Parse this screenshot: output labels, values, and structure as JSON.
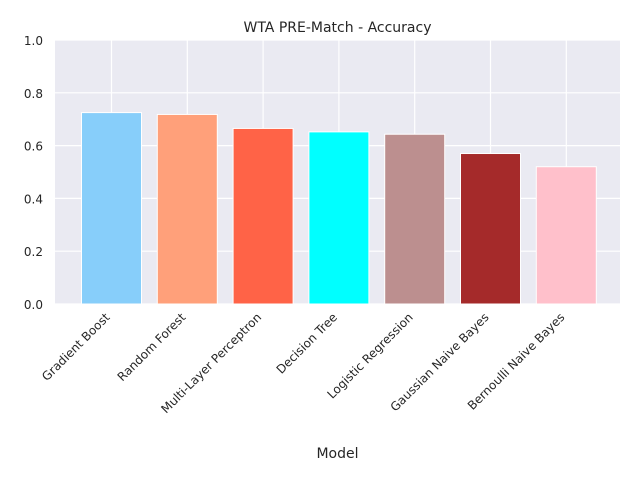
{
  "chart_data": {
    "type": "bar",
    "title": "WTA PRE-Match - Accuracy",
    "xlabel": "Model",
    "ylabel": "",
    "ylim": [
      0,
      1.0
    ],
    "yticks": [
      "0.0",
      "0.2",
      "0.4",
      "0.6",
      "0.8",
      "1.0"
    ],
    "categories": [
      "Gradient Boost",
      "Random Forest",
      "Multi-Layer Perceptron",
      "Decision Tree",
      "Logistic Regression",
      "Gaussian Naive Bayes",
      "Bernoulli Naive Bayes"
    ],
    "values": [
      0.725,
      0.718,
      0.665,
      0.652,
      0.643,
      0.57,
      0.52
    ],
    "colors": [
      "#87CEFA",
      "#FFA07A",
      "#FF6347",
      "#00FFFF",
      "#BC8F8F",
      "#A52A2A",
      "#FFC0CB"
    ],
    "grid": true,
    "background": "#EAEAF2"
  }
}
